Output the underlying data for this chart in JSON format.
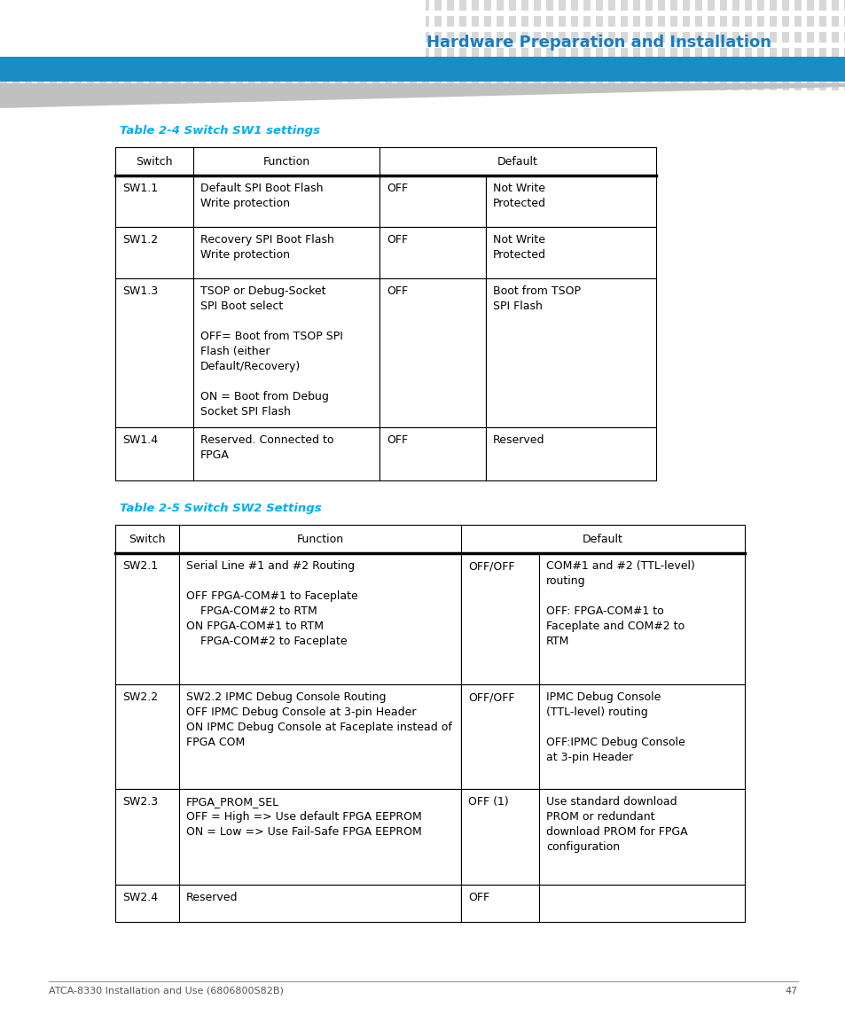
{
  "page_title": "Hardware Preparation and Installation",
  "page_title_color": "#1A7DC0",
  "table1_title": "Table 2-4 Switch SW1 settings",
  "table1_title_color": "#00AEEF",
  "table2_title": "Table 2-5 Switch SW2 Settings",
  "table2_title_color": "#00AEEF",
  "footer_text": "ATCA-8330 Installation and Use (6806800S82B)",
  "footer_page": "47",
  "bg_color": "#FFFFFF",
  "dot_color": "#D8D8D8",
  "blue_bar_color": "#1A8DC4",
  "gray_swoosh_color": "#C0C0C0",
  "table1_rows": [
    {
      "switch": "SW1.1",
      "function": "Default SPI Boot Flash\nWrite protection",
      "default1": "OFF",
      "default2": "Not Write\nProtected"
    },
    {
      "switch": "SW1.2",
      "function": "Recovery SPI Boot Flash\nWrite protection",
      "default1": "OFF",
      "default2": "Not Write\nProtected"
    },
    {
      "switch": "SW1.3",
      "function": "TSOP or Debug-Socket\nSPI Boot select\n\nOFF= Boot from TSOP SPI\nFlash (either\nDefault/Recovery)\n\nON = Boot from Debug\nSocket SPI Flash",
      "default1": "OFF",
      "default2": "Boot from TSOP\nSPI Flash"
    },
    {
      "switch": "SW1.4",
      "function": "Reserved. Connected to\nFPGA",
      "default1": "OFF",
      "default2": "Reserved"
    }
  ],
  "table2_rows": [
    {
      "switch": "SW2.1",
      "function": "Serial Line #1 and #2 Routing\n\nOFF FPGA-COM#1 to Faceplate\n    FPGA-COM#2 to RTM\nON FPGA-COM#1 to RTM\n    FPGA-COM#2 to Faceplate",
      "default1": "OFF/OFF",
      "default2": "COM#1 and #2 (TTL-level)\nrouting\n\nOFF: FPGA-COM#1 to\nFaceplate and COM#2 to\nRTM"
    },
    {
      "switch": "SW2.2",
      "function": "SW2.2 IPMC Debug Console Routing\nOFF IPMC Debug Console at 3-pin Header\nON IPMC Debug Console at Faceplate instead of\nFPGA COM",
      "default1": "OFF/OFF",
      "default2": "IPMC Debug Console\n(TTL-level) routing\n\nOFF:IPMC Debug Console\nat 3-pin Header"
    },
    {
      "switch": "SW2.3",
      "function": "FPGA_PROM_SEL\nOFF = High => Use default FPGA EEPROM\nON = Low => Use Fail-Safe FPGA EEPROM",
      "default1": "OFF (1)",
      "default2": "Use standard download\nPROM or redundant\ndownload PROM for FPGA\nconfiguration"
    },
    {
      "switch": "SW2.4",
      "function": "Reserved",
      "default1": "OFF",
      "default2": ""
    }
  ]
}
